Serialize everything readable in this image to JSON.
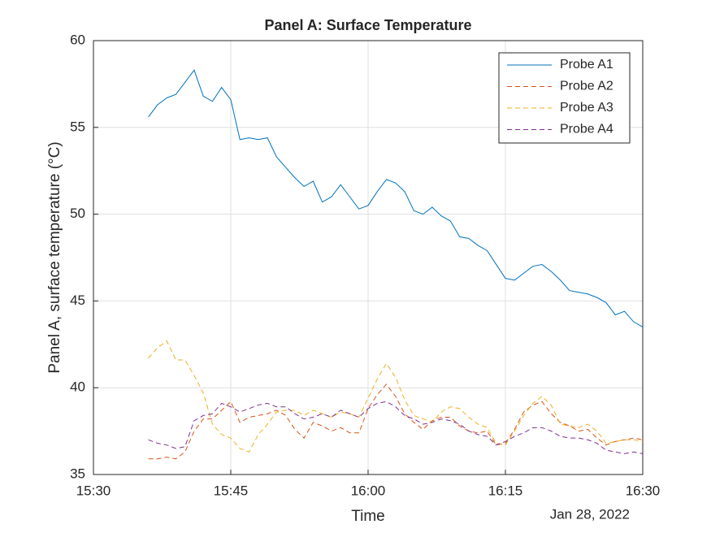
{
  "chart_data": {
    "type": "line",
    "title": "Panel A: Surface Temperature",
    "xlabel": "Time",
    "ylabel": "Panel A, surface temperature (°C)",
    "date_label": "Jan 28, 2022",
    "x": [
      "15:36",
      "15:37",
      "15:38",
      "15:39",
      "15:40",
      "15:41",
      "15:42",
      "15:43",
      "15:44",
      "15:45",
      "15:46",
      "15:47",
      "15:48",
      "15:49",
      "15:50",
      "15:51",
      "15:52",
      "15:53",
      "15:54",
      "15:55",
      "15:56",
      "15:57",
      "15:58",
      "15:59",
      "16:00",
      "16:01",
      "16:02",
      "16:03",
      "16:04",
      "16:05",
      "16:06",
      "16:07",
      "16:08",
      "16:09",
      "16:10",
      "16:11",
      "16:12",
      "16:13",
      "16:14",
      "16:15",
      "16:16",
      "16:17",
      "16:18",
      "16:19",
      "16:20",
      "16:21",
      "16:22",
      "16:23",
      "16:24",
      "16:25",
      "16:26",
      "16:27",
      "16:28",
      "16:29",
      "16:30"
    ],
    "series": [
      {
        "name": "Probe A1",
        "color": "#0072BD",
        "style": "solid",
        "values": [
          55.6,
          56.3,
          56.7,
          56.9,
          57.6,
          58.3,
          56.8,
          56.5,
          57.3,
          56.6,
          54.3,
          54.4,
          54.3,
          54.4,
          53.3,
          52.7,
          52.1,
          51.6,
          51.9,
          50.7,
          51.0,
          51.7,
          51.0,
          50.3,
          50.5,
          51.3,
          52.0,
          51.8,
          51.3,
          50.2,
          50.0,
          50.4,
          49.9,
          49.6,
          48.7,
          48.6,
          48.2,
          47.9,
          47.1,
          46.3,
          46.2,
          46.6,
          47.0,
          47.1,
          46.7,
          46.2,
          45.6,
          45.5,
          45.4,
          45.2,
          44.9,
          44.2,
          44.4,
          43.8,
          43.5
        ]
      },
      {
        "name": "Probe A2",
        "color": "#D95319",
        "style": "dashed",
        "values": [
          35.9,
          35.9,
          36.0,
          35.9,
          36.3,
          37.5,
          38.2,
          38.2,
          38.7,
          39.2,
          38.0,
          38.3,
          38.4,
          38.5,
          38.7,
          38.4,
          37.6,
          37.1,
          38.0,
          37.8,
          37.5,
          37.7,
          37.4,
          37.4,
          38.8,
          39.6,
          40.2,
          39.5,
          38.5,
          38.0,
          37.6,
          38.1,
          38.3,
          38.3,
          37.8,
          37.5,
          37.4,
          37.5,
          36.7,
          36.8,
          37.6,
          38.6,
          39.0,
          39.2,
          38.5,
          38.0,
          37.8,
          37.5,
          37.6,
          37.1,
          36.7,
          36.9,
          37.0,
          37.1,
          37.0
        ]
      },
      {
        "name": "Probe A3",
        "color": "#EDB120",
        "style": "dashed",
        "values": [
          41.7,
          42.3,
          42.7,
          41.6,
          41.6,
          40.7,
          39.7,
          37.9,
          37.3,
          37.1,
          36.5,
          36.3,
          37.3,
          37.9,
          38.6,
          38.7,
          38.7,
          38.4,
          38.7,
          38.5,
          38.3,
          38.6,
          38.5,
          38.3,
          39.4,
          40.5,
          41.4,
          40.6,
          39.3,
          38.4,
          38.2,
          38.0,
          38.6,
          38.9,
          38.8,
          38.3,
          37.9,
          37.7,
          36.8,
          36.7,
          37.5,
          38.4,
          39.1,
          39.5,
          39.0,
          37.9,
          37.8,
          37.7,
          37.9,
          37.5,
          36.8,
          36.9,
          37.0,
          37.0,
          36.9
        ]
      },
      {
        "name": "Probe A4",
        "color": "#7E2F8E",
        "style": "dashed",
        "values": [
          37.0,
          36.8,
          36.7,
          36.5,
          36.6,
          38.1,
          38.4,
          38.5,
          39.1,
          38.9,
          38.6,
          38.8,
          39.0,
          39.1,
          38.9,
          38.9,
          38.5,
          38.2,
          38.3,
          38.5,
          38.3,
          38.7,
          38.5,
          38.3,
          38.8,
          39.1,
          39.2,
          38.9,
          38.4,
          38.2,
          37.9,
          38.0,
          38.2,
          38.1,
          37.9,
          37.5,
          37.3,
          37.2,
          36.7,
          36.9,
          37.2,
          37.4,
          37.7,
          37.7,
          37.5,
          37.2,
          37.1,
          37.1,
          37.0,
          36.8,
          36.4,
          36.3,
          36.2,
          36.3,
          36.2
        ]
      }
    ],
    "xlim": [
      "15:30",
      "16:30"
    ],
    "xticks": [
      "15:30",
      "15:45",
      "16:00",
      "16:15",
      "16:30"
    ],
    "ylim": [
      35,
      60
    ],
    "yticks": [
      35,
      40,
      45,
      50,
      55,
      60
    ],
    "grid": true,
    "legend": "northeast"
  }
}
